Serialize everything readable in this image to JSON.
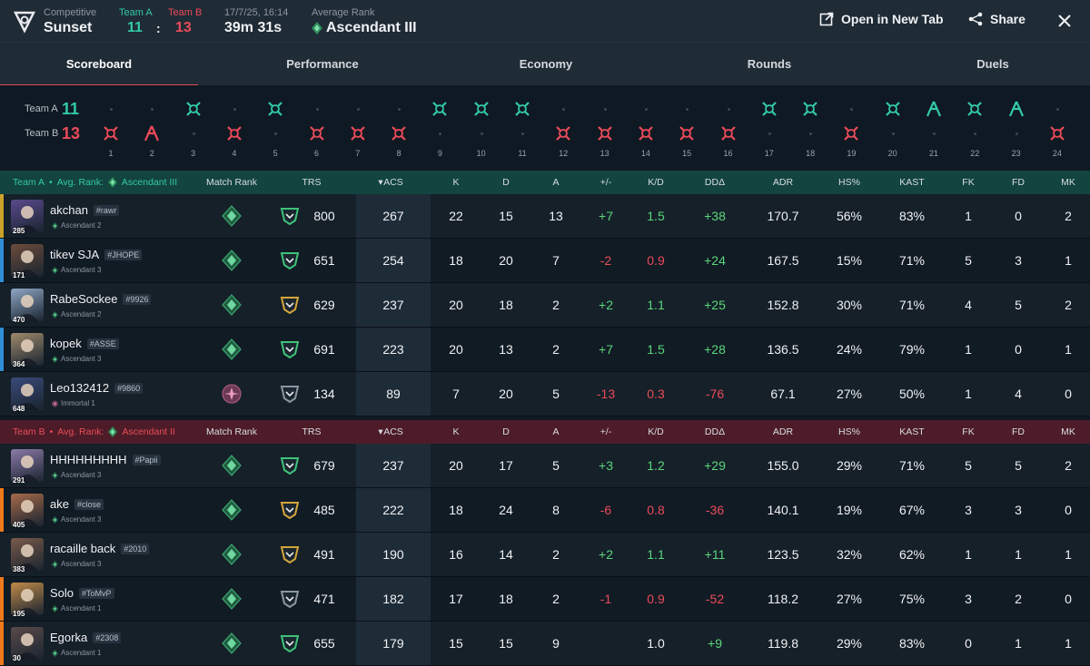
{
  "header": {
    "mode_label": "Competitive",
    "map_name": "Sunset",
    "team_a_label": "Team A",
    "team_b_label": "Team B",
    "team_a_score": "11",
    "score_sep": ":",
    "team_b_score": "13",
    "date": "17/7/25, 16:14",
    "duration": "39m 31s",
    "avg_rank_label": "Average Rank",
    "avg_rank": "Ascendant III",
    "open_new_tab": "Open in New Tab",
    "share": "Share"
  },
  "tabs": [
    "Scoreboard",
    "Performance",
    "Economy",
    "Rounds",
    "Duels"
  ],
  "timeline": {
    "team_a_label": "Team A",
    "team_b_label": "Team B",
    "team_a_score": "11",
    "team_b_score": "13",
    "rounds": [
      {
        "n": "1",
        "winner": "B",
        "icon": "elimination"
      },
      {
        "n": "2",
        "winner": "B",
        "icon": "defuse"
      },
      {
        "n": "3",
        "winner": "A",
        "icon": "elimination"
      },
      {
        "n": "4",
        "winner": "B",
        "icon": "elimination"
      },
      {
        "n": "5",
        "winner": "A",
        "icon": "elimination"
      },
      {
        "n": "6",
        "winner": "B",
        "icon": "elimination"
      },
      {
        "n": "7",
        "winner": "B",
        "icon": "elimination"
      },
      {
        "n": "8",
        "winner": "B",
        "icon": "elimination"
      },
      {
        "n": "9",
        "winner": "A",
        "icon": "elimination"
      },
      {
        "n": "10",
        "winner": "A",
        "icon": "elimination"
      },
      {
        "n": "11",
        "winner": "A",
        "icon": "elimination"
      },
      {
        "n": "12",
        "winner": "B",
        "icon": "elimination"
      },
      {
        "n": "13",
        "winner": "B",
        "icon": "elimination"
      },
      {
        "n": "14",
        "winner": "B",
        "icon": "elimination"
      },
      {
        "n": "15",
        "winner": "B",
        "icon": "elimination"
      },
      {
        "n": "16",
        "winner": "B",
        "icon": "elimination"
      },
      {
        "n": "17",
        "winner": "A",
        "icon": "elimination"
      },
      {
        "n": "18",
        "winner": "A",
        "icon": "elimination"
      },
      {
        "n": "19",
        "winner": "B",
        "icon": "elimination"
      },
      {
        "n": "20",
        "winner": "A",
        "icon": "elimination"
      },
      {
        "n": "21",
        "winner": "A",
        "icon": "defuse"
      },
      {
        "n": "22",
        "winner": "A",
        "icon": "elimination"
      },
      {
        "n": "23",
        "winner": "A",
        "icon": "defuse"
      },
      {
        "n": "24",
        "winner": "B",
        "icon": "elimination"
      }
    ]
  },
  "columns": [
    "Match Rank",
    "TRS",
    "ACS",
    "K",
    "D",
    "A",
    "+/-",
    "K/D",
    "DDΔ",
    "ADR",
    "HS%",
    "KAST",
    "FK",
    "FD",
    "MK"
  ],
  "team_a": {
    "label": "Team A",
    "bullet": "•",
    "avg_label": "Avg. Rank:",
    "avg_rank": "Ascendant III",
    "players": [
      {
        "name": "akchan",
        "tag": "#rawr",
        "rank": "Ascendant 2",
        "level": "285",
        "match_rank": "ascendant",
        "trs_badge": "green",
        "trs": "800",
        "acs": "267",
        "k": "22",
        "d": "15",
        "a": "13",
        "pm": "+7",
        "kd": "1.5",
        "dd": "+38",
        "adr": "170.7",
        "hs": "56%",
        "kast": "83%",
        "fk": "1",
        "fd": "0",
        "mk": "2",
        "accent": "#c9a227",
        "avatar_color": "#5a4a8c"
      },
      {
        "name": "tikev SJA",
        "tag": "#JHOPE",
        "rank": "Ascendant 3",
        "level": "171",
        "match_rank": "ascendant",
        "trs_badge": "green",
        "trs": "651",
        "acs": "254",
        "k": "18",
        "d": "20",
        "a": "7",
        "pm": "-2",
        "kd": "0.9",
        "dd": "+24",
        "adr": "167.5",
        "hs": "15%",
        "kast": "71%",
        "fk": "5",
        "fd": "3",
        "mk": "1",
        "accent": "#2f8fd8",
        "avatar_color": "#6b4c3b"
      },
      {
        "name": "RabeSockee",
        "tag": "#9926",
        "rank": "Ascendant 2",
        "level": "470",
        "match_rank": "ascendant",
        "trs_badge": "gold",
        "trs": "629",
        "acs": "237",
        "k": "20",
        "d": "18",
        "a": "2",
        "pm": "+2",
        "kd": "1.1",
        "dd": "+25",
        "adr": "152.8",
        "hs": "30%",
        "kast": "71%",
        "fk": "4",
        "fd": "5",
        "mk": "2",
        "accent": "",
        "avatar_color": "#8fa6c4"
      },
      {
        "name": "kopek",
        "tag": "#ASSE",
        "rank": "Ascendant 3",
        "level": "364",
        "match_rank": "ascendant",
        "trs_badge": "green",
        "trs": "691",
        "acs": "223",
        "k": "20",
        "d": "13",
        "a": "2",
        "pm": "+7",
        "kd": "1.5",
        "dd": "+28",
        "adr": "136.5",
        "hs": "24%",
        "kast": "79%",
        "fk": "1",
        "fd": "0",
        "mk": "1",
        "accent": "#2f8fd8",
        "avatar_color": "#a08a6c"
      },
      {
        "name": "Leo132412",
        "tag": "#9860",
        "rank": "Immortal 1",
        "level": "648",
        "match_rank": "immortal",
        "trs_badge": "gray",
        "trs": "134",
        "acs": "89",
        "k": "7",
        "d": "20",
        "a": "5",
        "pm": "-13",
        "kd": "0.3",
        "dd": "-76",
        "adr": "67.1",
        "hs": "27%",
        "kast": "50%",
        "fk": "1",
        "fd": "4",
        "mk": "0",
        "accent": "",
        "avatar_color": "#3a4a7a"
      }
    ]
  },
  "team_b": {
    "label": "Team B",
    "bullet": "•",
    "avg_label": "Avg. Rank:",
    "avg_rank": "Ascendant II",
    "players": [
      {
        "name": "HHHHHHHHH",
        "tag": "#Papii",
        "rank": "Ascendant 3",
        "level": "291",
        "match_rank": "ascendant",
        "trs_badge": "green",
        "trs": "679",
        "acs": "237",
        "k": "20",
        "d": "17",
        "a": "5",
        "pm": "+3",
        "kd": "1.2",
        "dd": "+29",
        "adr": "155.0",
        "hs": "29%",
        "kast": "71%",
        "fk": "5",
        "fd": "5",
        "mk": "2",
        "accent": "",
        "avatar_color": "#8c7aa8"
      },
      {
        "name": "ake",
        "tag": "#close",
        "rank": "Ascendant 3",
        "level": "405",
        "match_rank": "ascendant",
        "trs_badge": "gold",
        "trs": "485",
        "acs": "222",
        "k": "18",
        "d": "24",
        "a": "8",
        "pm": "-6",
        "kd": "0.8",
        "dd": "-36",
        "adr": "140.1",
        "hs": "19%",
        "kast": "67%",
        "fk": "3",
        "fd": "3",
        "mk": "0",
        "accent": "#f07a1a",
        "avatar_color": "#a66a4a"
      },
      {
        "name": "racaille back",
        "tag": "#2010",
        "rank": "Ascendant 3",
        "level": "383",
        "match_rank": "ascendant",
        "trs_badge": "gold",
        "trs": "491",
        "acs": "190",
        "k": "16",
        "d": "14",
        "a": "2",
        "pm": "+2",
        "kd": "1.1",
        "dd": "+11",
        "adr": "123.5",
        "hs": "32%",
        "kast": "62%",
        "fk": "1",
        "fd": "1",
        "mk": "1",
        "accent": "",
        "avatar_color": "#7a5a4a"
      },
      {
        "name": "Solo",
        "tag": "#ToMvP",
        "rank": "Ascendant 1",
        "level": "195",
        "match_rank": "ascendant",
        "trs_badge": "gray",
        "trs": "471",
        "acs": "182",
        "k": "17",
        "d": "18",
        "a": "2",
        "pm": "-1",
        "kd": "0.9",
        "dd": "-52",
        "adr": "118.2",
        "hs": "27%",
        "kast": "75%",
        "fk": "3",
        "fd": "2",
        "mk": "0",
        "accent": "#f07a1a",
        "avatar_color": "#c08a4a"
      },
      {
        "name": "Egorka",
        "tag": "#2308",
        "rank": "Ascendant 1",
        "level": "30",
        "match_rank": "ascendant",
        "trs_badge": "green",
        "trs": "655",
        "acs": "179",
        "k": "15",
        "d": "15",
        "a": "9",
        "pm": "",
        "kd": "1.0",
        "dd": "+9",
        "adr": "119.8",
        "hs": "29%",
        "kast": "83%",
        "fk": "0",
        "fd": "1",
        "mk": "1",
        "accent": "#f07a1a",
        "avatar_color": "#5a4a4a"
      }
    ]
  },
  "colors": {
    "team_a": "#33c9a6",
    "team_b": "#ec4b5a",
    "positive": "#5ad67a",
    "negative": "#ec4b5a",
    "tab_active": "#e54b5a"
  }
}
